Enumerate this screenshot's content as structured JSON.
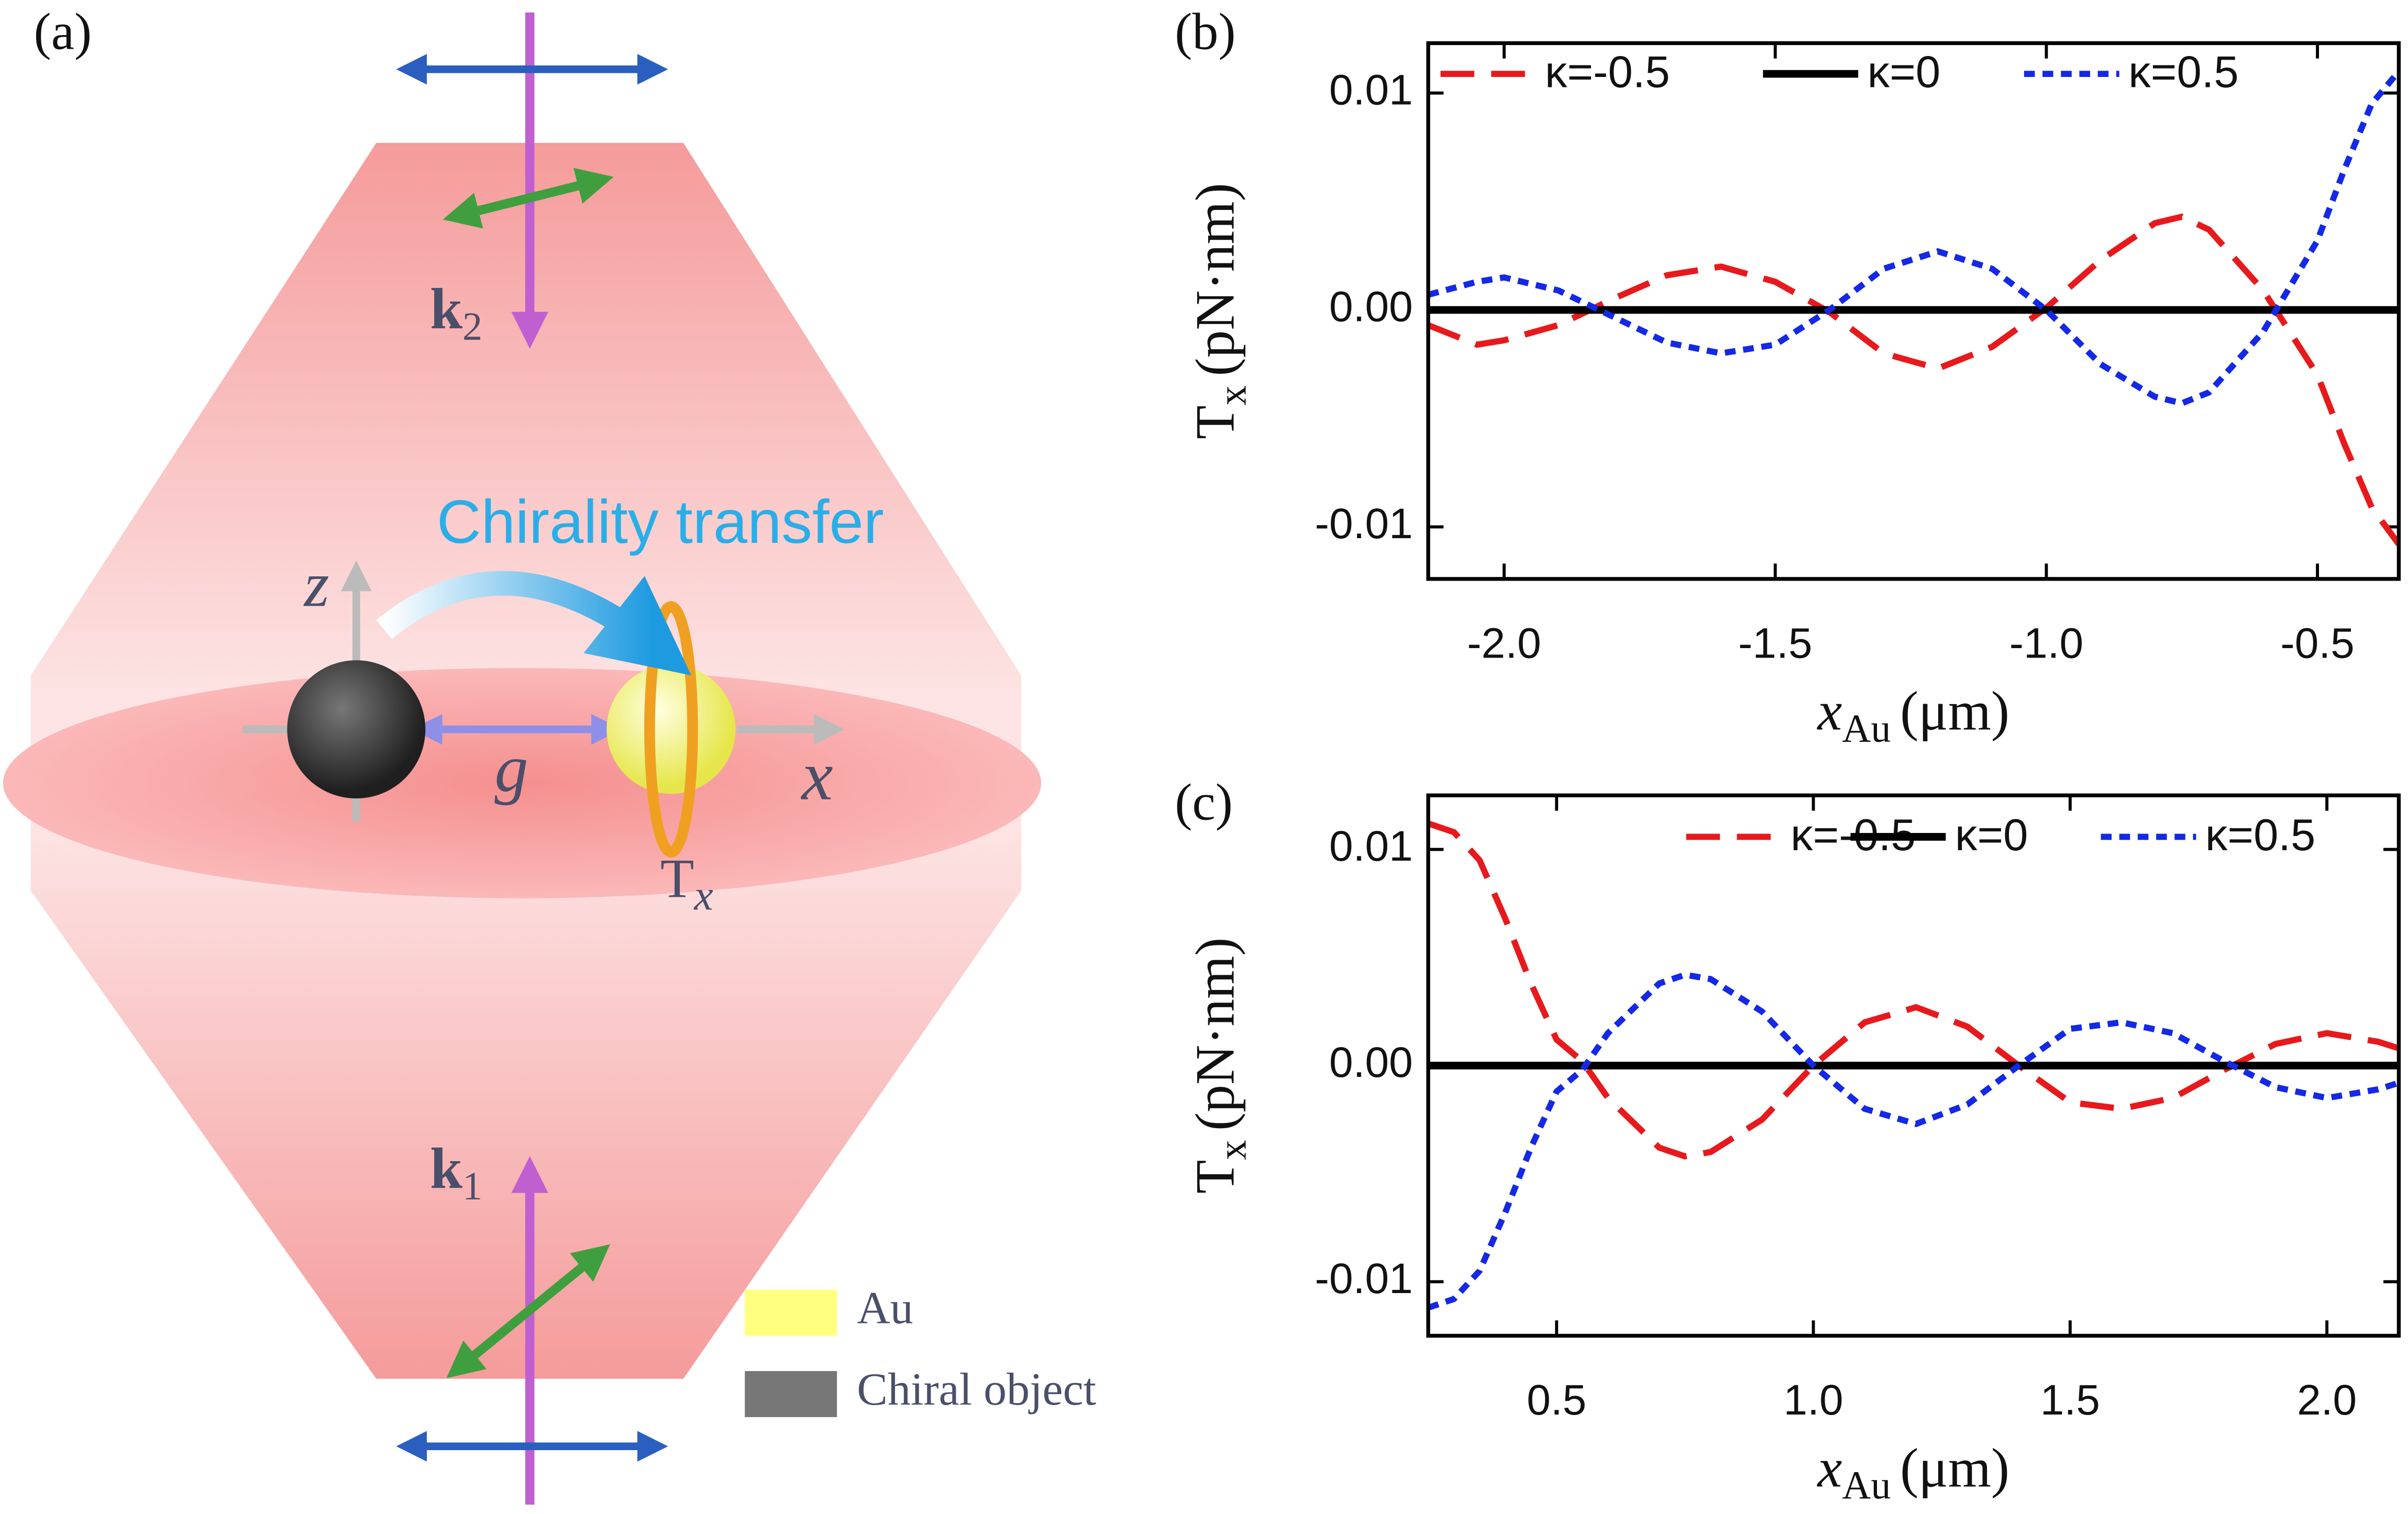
{
  "diagram": {
    "label": "(a)",
    "title": "Chirality transfer",
    "axis_z": "z",
    "axis_x": "x",
    "gap": "g",
    "torque": {
      "symbol": "T",
      "subscript": "x"
    },
    "beams": [
      {
        "symbol": "k",
        "subscript": "2"
      },
      {
        "symbol": "k",
        "subscript": "1"
      }
    ],
    "legend": [
      "Au",
      "Chiral object"
    ]
  },
  "chart_data": [
    {
      "type": "line",
      "label": "(b)",
      "xlabel": {
        "symbol": "x",
        "subscript": "Au",
        "unit": "(μm)"
      },
      "ylabel": {
        "symbol": "T",
        "subscript": "x",
        "unit": "(pN·nm)"
      },
      "x": [
        -2.14,
        -2.05,
        -2.0,
        -1.9,
        -1.8,
        -1.7,
        -1.6,
        -1.5,
        -1.4,
        -1.3,
        -1.2,
        -1.1,
        -1.0,
        -0.9,
        -0.8,
        -0.75,
        -0.7,
        -0.6,
        -0.5,
        -0.45,
        -0.4,
        -0.35
      ],
      "series": [
        {
          "name": "κ=-0.5",
          "color": "#e8191c",
          "linestyle": "dashed",
          "values": [
            -0.0007,
            -0.0016,
            -0.0014,
            -0.0007,
            0.0005,
            0.0016,
            0.002,
            0.0013,
            -0.0001,
            -0.002,
            -0.0027,
            -0.0017,
            0.0001,
            0.0023,
            0.004,
            0.0043,
            0.0037,
            0.0009,
            -0.003,
            -0.0062,
            -0.0091,
            -0.0108
          ]
        },
        {
          "name": "κ=0",
          "color": "#000000",
          "linestyle": "solid",
          "values": [
            0,
            0,
            0,
            0,
            0,
            0,
            0,
            0,
            0,
            0,
            0,
            0,
            0,
            0,
            0,
            0,
            0,
            0,
            0,
            0,
            0,
            0
          ]
        },
        {
          "name": "κ=0.5",
          "color": "#1428e6",
          "linestyle": "dotted",
          "values": [
            0.0007,
            0.0013,
            0.0015,
            0.0009,
            -0.0003,
            -0.0015,
            -0.002,
            -0.0016,
            0.0,
            0.0019,
            0.0027,
            0.0019,
            0.0,
            -0.0025,
            -0.004,
            -0.0043,
            -0.0038,
            -0.001,
            0.0032,
            0.0065,
            0.0095,
            0.011
          ]
        }
      ],
      "xlim": [
        -2.14,
        -0.35
      ],
      "ylim": [
        -0.0124,
        0.0123
      ],
      "xticks": [
        {
          "value": -2,
          "label": "-2.0"
        },
        -1.5,
        {
          "value": -1,
          "label": "-1.0"
        },
        -0.5
      ],
      "yticks": [
        -0.01,
        {
          "value": 0,
          "label": "0.00"
        },
        0.01
      ]
    },
    {
      "type": "line",
      "label": "(c)",
      "xlabel": {
        "symbol": "x",
        "subscript": "Au",
        "unit": "(μm)"
      },
      "ylabel": {
        "symbol": "T",
        "subscript": "x",
        "unit": "(pN·nm)"
      },
      "x": [
        0.25,
        0.3,
        0.35,
        0.4,
        0.45,
        0.5,
        0.55,
        0.6,
        0.7,
        0.75,
        0.8,
        0.9,
        1.0,
        1.1,
        1.2,
        1.3,
        1.4,
        1.5,
        1.6,
        1.7,
        1.8,
        1.9,
        2.0,
        2.1,
        2.14
      ],
      "series": [
        {
          "name": "κ=-0.5",
          "color": "#e8191c",
          "linestyle": "dashed",
          "values": [
            0.0112,
            0.0108,
            0.0095,
            0.0068,
            0.0038,
            0.0012,
            0.0002,
            -0.0015,
            -0.0038,
            -0.0042,
            -0.004,
            -0.0025,
            0.0,
            0.002,
            0.0027,
            0.0018,
            0.0,
            -0.0017,
            -0.002,
            -0.0015,
            -0.0002,
            0.001,
            0.0015,
            0.0011,
            0.0008
          ]
        },
        {
          "name": "κ=0",
          "color": "#000000",
          "linestyle": "solid",
          "values": [
            0,
            0,
            0,
            0,
            0,
            0,
            0,
            0,
            0,
            0,
            0,
            0,
            0,
            0,
            0,
            0,
            0,
            0,
            0,
            0,
            0,
            0,
            0,
            0,
            0
          ]
        },
        {
          "name": "κ=0.5",
          "color": "#1428e6",
          "linestyle": "dotted",
          "values": [
            -0.0112,
            -0.0108,
            -0.0095,
            -0.0068,
            -0.0038,
            -0.0012,
            -0.0002,
            0.0015,
            0.0038,
            0.0042,
            0.004,
            0.0025,
            0.0,
            -0.002,
            -0.0027,
            -0.0018,
            0.0,
            0.0017,
            0.002,
            0.0015,
            0.0002,
            -0.001,
            -0.0015,
            -0.0011,
            -0.0008
          ]
        }
      ],
      "xlim": [
        0.25,
        2.14
      ],
      "ylim": [
        -0.0125,
        0.0125
      ],
      "xticks": [
        0.5,
        {
          "value": 1,
          "label": "1.0"
        },
        1.5,
        {
          "value": 2,
          "label": "2.0"
        }
      ],
      "yticks": [
        -0.01,
        {
          "value": 0,
          "label": "0.00"
        },
        0.01
      ]
    }
  ]
}
